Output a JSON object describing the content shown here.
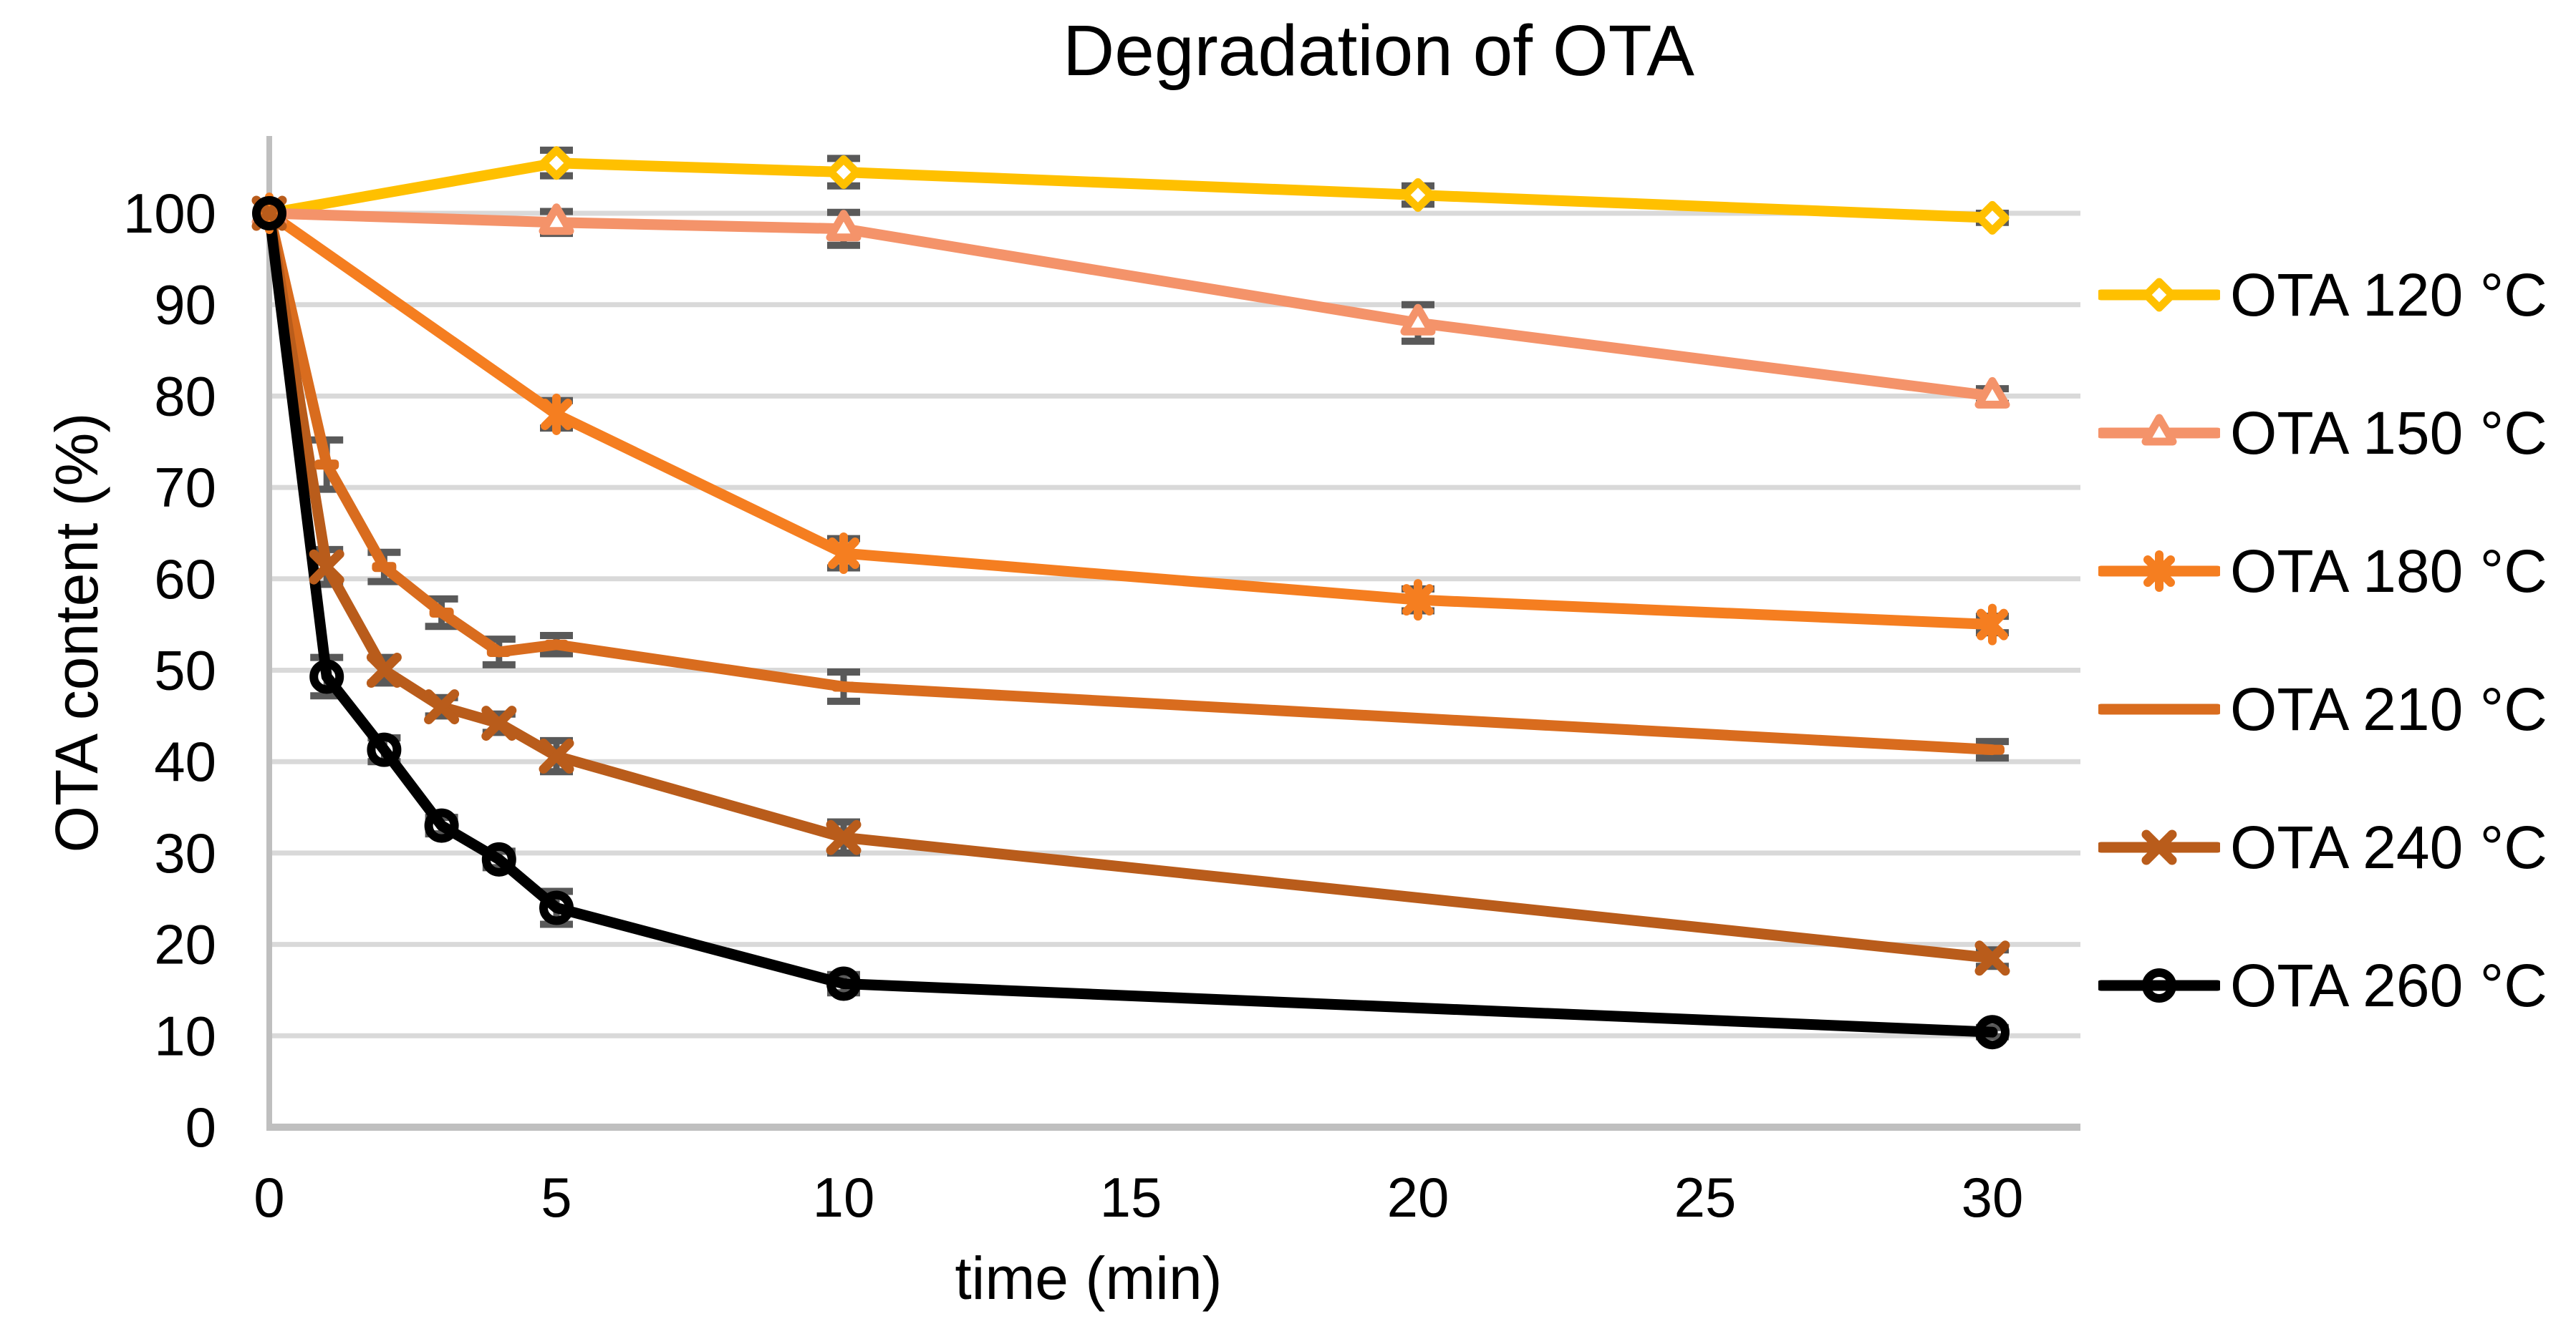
{
  "title": "Degradation of OTA",
  "x_axis": {
    "label": "time (min)",
    "ticks": [
      0,
      5,
      10,
      15,
      20,
      25,
      30
    ]
  },
  "y_axis": {
    "label": "OTA content (%)",
    "ticks": [
      0,
      10,
      20,
      30,
      40,
      50,
      60,
      70,
      80,
      90,
      100
    ]
  },
  "colors": {
    "background": "#FFFFFF",
    "gridline": "#D9D9D9",
    "axis": "#BFBFBF",
    "error_bar": "#595959",
    "text": "#000000"
  },
  "chart_data": {
    "type": "line",
    "title": "Degradation of OTA",
    "xlabel": "time (min)",
    "ylabel": "OTA content (%)",
    "xlim": [
      0,
      31.6
    ],
    "ylim": [
      0,
      108.5
    ],
    "grid": true,
    "legend_position": "right",
    "series": [
      {
        "name": "OTA 120 °C",
        "color": "#FFC000",
        "marker": "diamond",
        "x": [
          0,
          5,
          10,
          20,
          30
        ],
        "y": [
          100,
          105.5,
          104.5,
          102,
          99.5
        ],
        "err": [
          0,
          1.4,
          1.5,
          1.0,
          0.5
        ]
      },
      {
        "name": "OTA 150 °C",
        "color": "#F4936A",
        "marker": "triangle",
        "x": [
          0,
          5,
          10,
          20,
          30
        ],
        "y": [
          100,
          99,
          98.3,
          88,
          80
        ],
        "err": [
          0,
          1.2,
          1.8,
          2.0,
          0.8
        ]
      },
      {
        "name": "OTA 180 °C",
        "color": "#F57E20",
        "marker": "asterisk",
        "x": [
          0,
          5,
          10,
          20,
          30
        ],
        "y": [
          100,
          78,
          62.8,
          57.7,
          55
        ],
        "err": [
          0,
          1.5,
          1.6,
          1.2,
          0.9
        ]
      },
      {
        "name": "OTA 210 °C",
        "color": "#D96C1E",
        "marker": "dash",
        "x": [
          0,
          1,
          2,
          3,
          4,
          5,
          10,
          30
        ],
        "y": [
          100,
          72.5,
          61.3,
          56.3,
          52,
          52.8,
          48.2,
          41.3
        ],
        "err": [
          0,
          2.7,
          1.6,
          1.5,
          1.4,
          1.0,
          1.6,
          0.9
        ]
      },
      {
        "name": "OTA 240 °C",
        "color": "#B95C1B",
        "marker": "x",
        "x": [
          0,
          1,
          2,
          3,
          4,
          5,
          10,
          30
        ],
        "y": [
          100,
          61.3,
          50,
          46,
          44.2,
          40.6,
          31.7,
          18.5
        ],
        "err": [
          0,
          1.9,
          1.4,
          1.0,
          1.0,
          1.7,
          1.7,
          0.9
        ]
      },
      {
        "name": "OTA 260 °C",
        "color": "#000000",
        "marker": "circle",
        "x": [
          0,
          1,
          2,
          3,
          4,
          5,
          10,
          30
        ],
        "y": [
          100,
          49.3,
          41.3,
          33,
          29.3,
          24,
          15.7,
          10.4
        ],
        "err": [
          0,
          2.1,
          1.3,
          0.9,
          0.9,
          1.8,
          1.0,
          0.5
        ]
      }
    ]
  }
}
